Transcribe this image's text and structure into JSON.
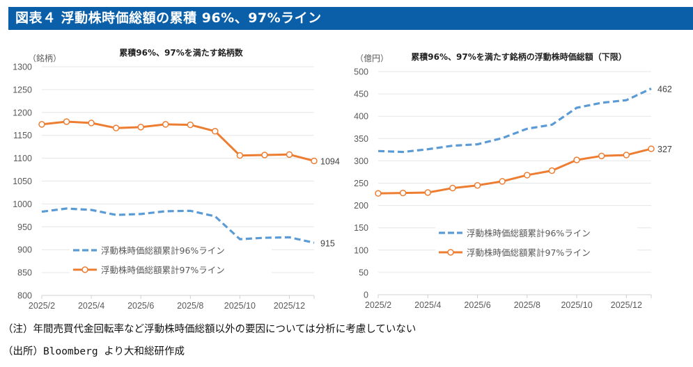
{
  "header": {
    "title": "図表４ 浮動株時価総額の累積 96%、97%ライン"
  },
  "colors": {
    "banner": "#0a5fa8",
    "series96": "#5b9bd5",
    "series97": "#ed7d31",
    "grid": "#e6e6e6"
  },
  "chart_data": [
    {
      "type": "line",
      "title": "累積96%、97%を満たす銘柄数",
      "ylabel": "（銘柄）",
      "xlabel": "",
      "ylim": [
        800,
        1300
      ],
      "yticks": [
        800,
        850,
        900,
        950,
        1000,
        1050,
        1100,
        1150,
        1200,
        1250,
        1300
      ],
      "x": [
        "2025/2",
        "2025/3",
        "2025/4",
        "2025/5",
        "2025/6",
        "2025/7",
        "2025/8",
        "2025/9",
        "2025/10",
        "2025/11",
        "2025/12",
        "2026/1"
      ],
      "xtick_labels": [
        "2025/2",
        "2025/4",
        "2025/6",
        "2025/8",
        "2025/10",
        "2025/12"
      ],
      "grid": true,
      "legend_position": "bottom-center",
      "series": [
        {
          "name": "浮動株時価総額累計96%ライン",
          "style": "dashed",
          "values": [
            983,
            990,
            987,
            976,
            978,
            984,
            985,
            973,
            923,
            926,
            927,
            915
          ],
          "end_label": "915"
        },
        {
          "name": "浮動株時価総額累計97%ライン",
          "style": "solid-marker",
          "values": [
            1174,
            1180,
            1177,
            1166,
            1168,
            1174,
            1173,
            1159,
            1106,
            1107,
            1108,
            1094
          ],
          "end_label": "1094"
        }
      ]
    },
    {
      "type": "line",
      "title": "累積96%、97%を満たす銘柄の浮動株時価総額（下限）",
      "ylabel": "（億円）",
      "xlabel": "",
      "ylim": [
        0,
        500
      ],
      "yticks": [
        0,
        50,
        100,
        150,
        200,
        250,
        300,
        350,
        400,
        450,
        500
      ],
      "x": [
        "2025/2",
        "2025/3",
        "2025/4",
        "2025/5",
        "2025/6",
        "2025/7",
        "2025/8",
        "2025/9",
        "2025/10",
        "2025/11",
        "2025/12",
        "2026/1"
      ],
      "xtick_labels": [
        "2025/2",
        "2025/4",
        "2025/6",
        "2025/8",
        "2025/10",
        "2025/12"
      ],
      "grid": true,
      "legend_position": "center-bottom",
      "series": [
        {
          "name": "浮動株時価総額累計96%ライン",
          "style": "dashed",
          "values": [
            322,
            320,
            326,
            334,
            337,
            351,
            372,
            381,
            419,
            430,
            436,
            462
          ],
          "end_label": "462"
        },
        {
          "name": "浮動株時価総額累計97%ライン",
          "style": "solid-marker",
          "values": [
            227,
            228,
            229,
            239,
            245,
            254,
            268,
            278,
            302,
            311,
            313,
            327
          ],
          "end_label": "327"
        }
      ]
    }
  ],
  "notes": {
    "note": "（注）年間売買代金回転率など浮動株時価総額以外の要因については分析に考慮していない",
    "source": "（出所）Bloomberg より大和総研作成"
  }
}
